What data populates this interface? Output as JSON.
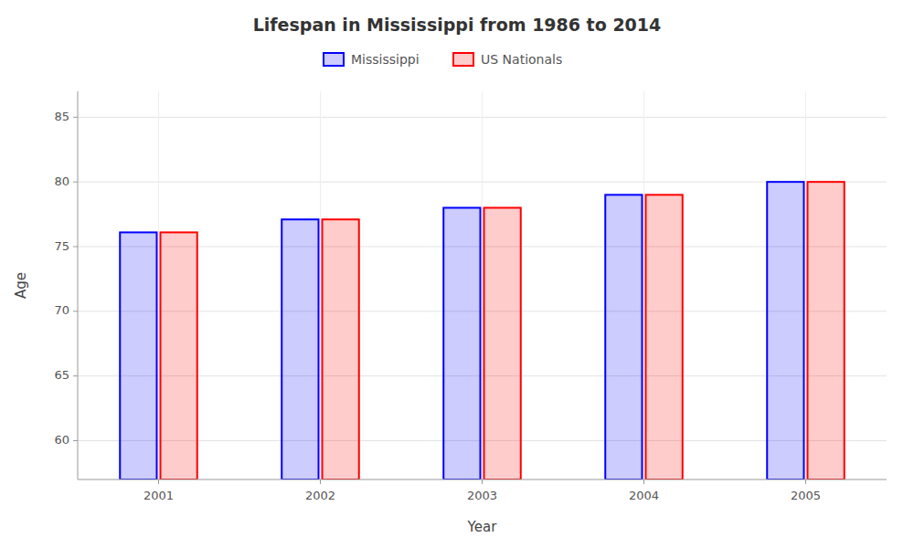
{
  "chart_data": {
    "type": "bar",
    "title": "Lifespan in Mississippi from 1986 to 2014",
    "x_label": "Year",
    "y_label": "Age",
    "categories": [
      "2001",
      "2002",
      "2003",
      "2004",
      "2005"
    ],
    "series": [
      {
        "name": "Mississippi",
        "color": "#0000ff",
        "values": [
          76.1,
          77.1,
          78.0,
          79.0,
          80.0
        ]
      },
      {
        "name": "US Nationals",
        "color": "#ff0000",
        "values": [
          76.1,
          77.1,
          78.0,
          79.0,
          80.0
        ]
      }
    ],
    "ylim": [
      57,
      87
    ],
    "yticks": [
      60,
      65,
      70,
      75,
      80,
      85
    ],
    "grid": true,
    "legend": "top"
  }
}
